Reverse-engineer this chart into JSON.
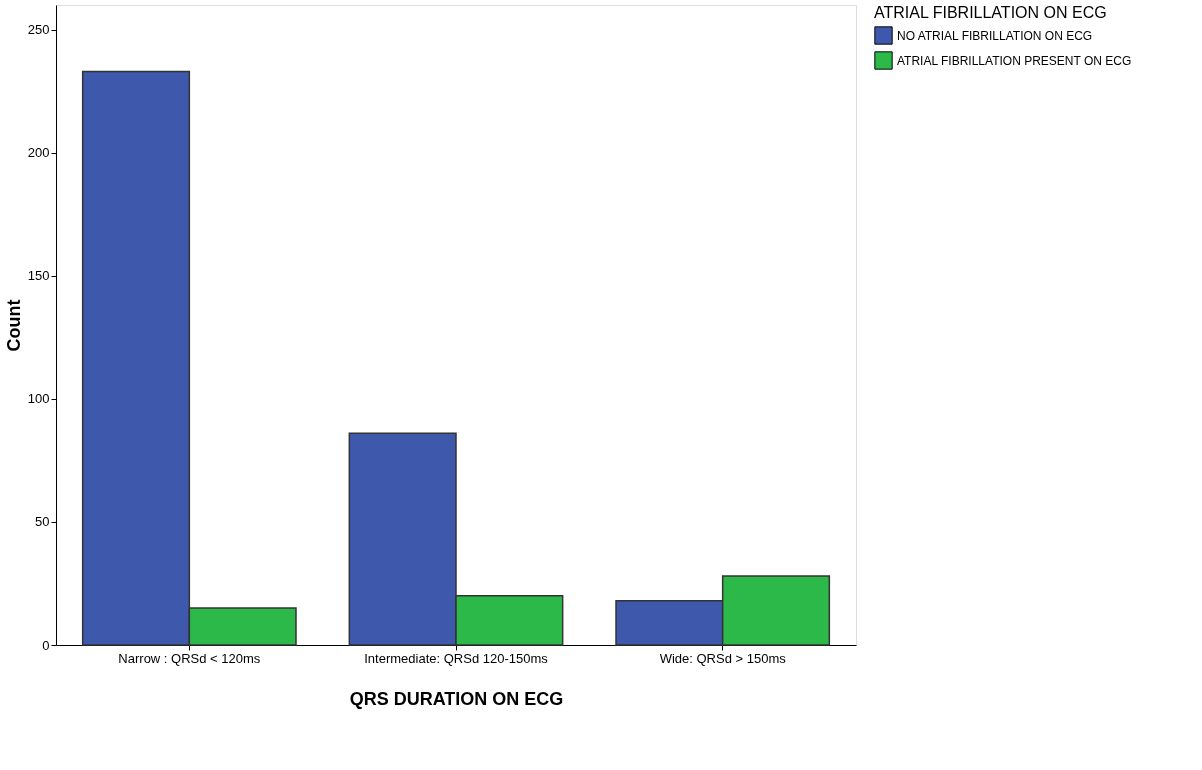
{
  "chart_data": {
    "type": "bar",
    "xlabel": "QRS DURATION ON ECG",
    "ylabel": "Count",
    "legend_title": "ATRIAL FIBRILLATION ON ECG",
    "categories": [
      "Narrow : QRSd < 120ms",
      "Intermediate: QRSd 120-150ms",
      "Wide: QRSd > 150ms"
    ],
    "series": [
      {
        "name": "NO ATRIAL FIBRILLATION ON ECG",
        "color": "#3e58ac",
        "values": [
          233,
          86,
          18
        ]
      },
      {
        "name": "ATRIAL FIBRILLATION PRESENT ON ECG",
        "color": "#2db84a",
        "values": [
          15,
          20,
          28
        ]
      }
    ],
    "ylim": [
      0,
      260
    ],
    "yticks": [
      0,
      50,
      100,
      150,
      200,
      250
    ],
    "grid": false,
    "legend": "top right"
  }
}
